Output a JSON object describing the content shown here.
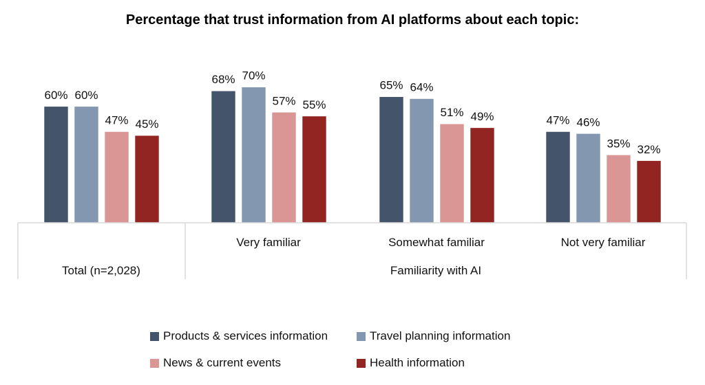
{
  "chart_data": {
    "type": "bar",
    "title": "Percentage that trust information from AI platforms about each topic:",
    "categories": [
      "Total (n=2,028)",
      "Very familiar",
      "Somewhat familiar",
      "Not very familiar"
    ],
    "group_label": "Familiarity with AI",
    "series": [
      {
        "name": "Products & services information",
        "color": "#44546A",
        "values": [
          60,
          68,
          65,
          47
        ]
      },
      {
        "name": "Travel planning information",
        "color": "#8497B0",
        "values": [
          60,
          70,
          64,
          46
        ]
      },
      {
        "name": "News & current events",
        "color": "#DA9694",
        "values": [
          47,
          57,
          51,
          35
        ]
      },
      {
        "name": "Health information",
        "color": "#922421",
        "values": [
          45,
          55,
          49,
          32
        ]
      }
    ],
    "value_suffix": "%",
    "ylim": [
      0,
      80
    ],
    "grid": false,
    "legend_position": "bottom"
  }
}
